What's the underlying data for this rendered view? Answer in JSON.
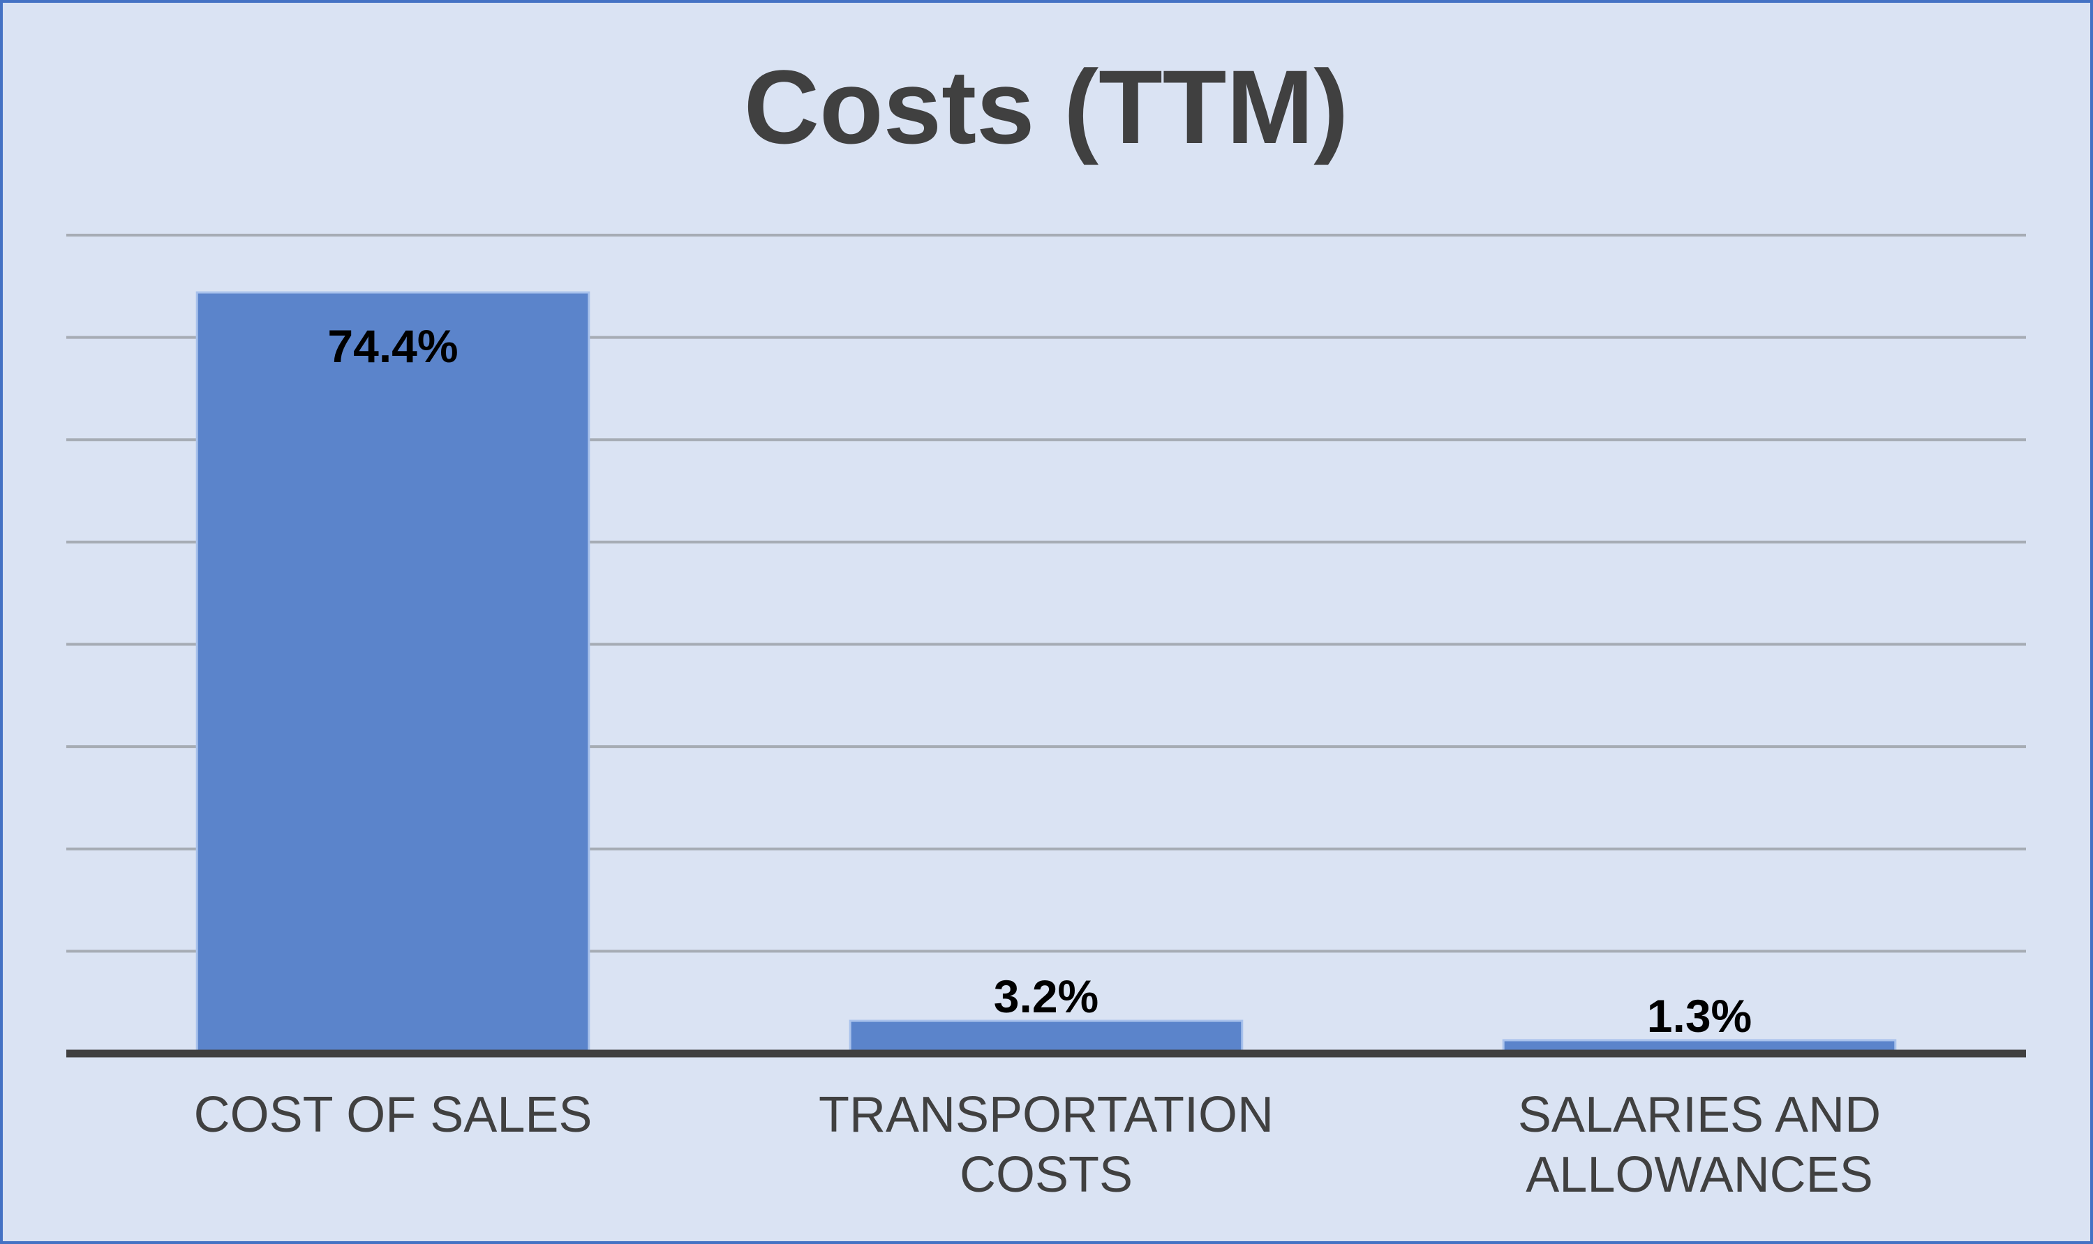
{
  "chart_data": {
    "type": "bar",
    "title": "Costs (TTM)",
    "categories": [
      [
        "COST OF SALES"
      ],
      [
        "TRANSPORTATION",
        "COSTS"
      ],
      [
        "SALARIES AND",
        "ALLOWANCES"
      ]
    ],
    "values": [
      74.4,
      3.2,
      1.3
    ],
    "data_labels": [
      "74.4%",
      "3.2%",
      "1.3%"
    ],
    "unit": "%",
    "ylim": [
      0,
      80
    ],
    "grid": true,
    "legend": "none",
    "colors": {
      "background": "#dae3f3",
      "border": "#4472c4",
      "bar": "#5b84cb",
      "bar_edge": "#a9c2ec",
      "gridline": "#a6acb4",
      "axis": "#404040",
      "text": "#404040"
    }
  }
}
